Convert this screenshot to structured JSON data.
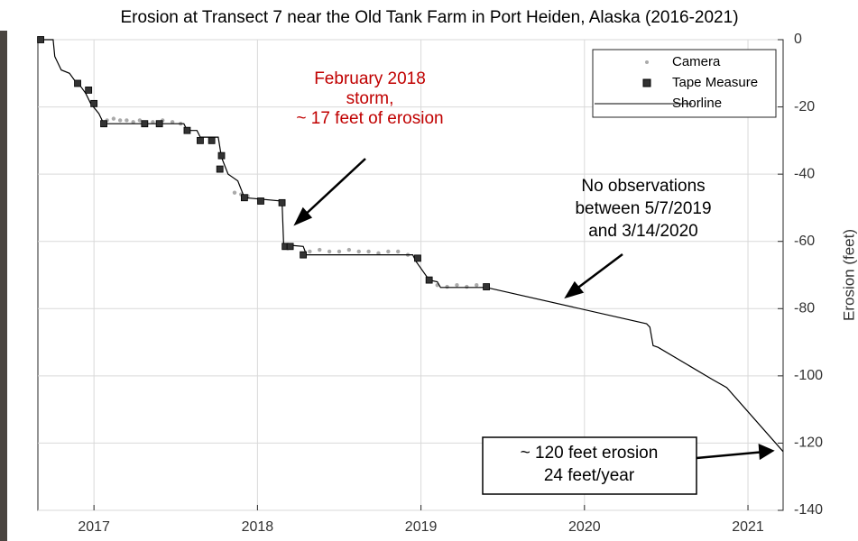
{
  "chart_data": {
    "type": "line",
    "title": "Erosion at Transect 7 near the Old Tank Farm in Port Heiden, Alaska (2016-2021)",
    "ylabel": "Erosion (feet)",
    "xlim": [
      2016.657,
      2021.215
    ],
    "xticks": [
      2017,
      2018,
      2019,
      2020,
      2021
    ],
    "ylim": [
      -140,
      0
    ],
    "yticks": [
      -140,
      -120,
      -100,
      -80,
      -60,
      -40,
      -20,
      0
    ],
    "grid": true,
    "legend": "upper right",
    "series": [
      {
        "name": "Camera",
        "color": "#aaaaaa",
        "x": [
          2017.08,
          2017.12,
          2017.16,
          2017.2,
          2017.24,
          2017.28,
          2017.36,
          2017.42,
          2017.48,
          2017.53,
          2017.86,
          2017.9,
          2017.94,
          2018.32,
          2018.38,
          2018.44,
          2018.5,
          2018.56,
          2018.62,
          2018.68,
          2018.74,
          2018.8,
          2018.86,
          2018.92,
          2019.1,
          2019.16,
          2019.22,
          2019.28,
          2019.34
        ],
        "values": [
          -24,
          -23.5,
          -24,
          -24,
          -24.5,
          -24,
          -24.5,
          -24,
          -24.5,
          -25,
          -45.5,
          -46,
          -46.5,
          -63,
          -62.5,
          -63,
          -63,
          -62.5,
          -63,
          -63,
          -63.5,
          -63,
          -63,
          -64,
          -73,
          -73.5,
          -73,
          -73.5,
          -73
        ]
      },
      {
        "name": "Tape Measure",
        "color": "#333333",
        "x": [
          2016.674,
          2016.9,
          2016.967,
          2017.0,
          2017.06,
          2017.31,
          2017.4,
          2017.57,
          2017.65,
          2017.72,
          2017.78,
          2017.77,
          2017.92,
          2018.02,
          2018.15,
          2018.17,
          2018.2,
          2018.28,
          2018.98,
          2019.05,
          2019.4
        ],
        "values": [
          0,
          -13,
          -15,
          -19,
          -25,
          -25,
          -25,
          -27,
          -30,
          -30,
          -34.5,
          -38.5,
          -47,
          -48,
          -48.5,
          -61.5,
          -61.5,
          -64,
          -65,
          -71.5,
          -73.5
        ]
      },
      {
        "name": "Shorline",
        "color": "#000000",
        "x": [
          2016.66,
          2016.75,
          2016.76,
          2016.8,
          2016.85,
          2016.88,
          2016.92,
          2016.95,
          2016.98,
          2017.03,
          2017.06,
          2017.55,
          2017.57,
          2017.63,
          2017.65,
          2017.76,
          2017.78,
          2017.82,
          2017.88,
          2017.92,
          2018.15,
          2018.16,
          2018.28,
          2018.3,
          2018.95,
          2018.97,
          2019.05,
          2019.1,
          2019.12,
          2019.4,
          2020.38,
          2020.4,
          2020.42,
          2020.45,
          2020.78,
          2020.87,
          2021.215
        ],
        "values": [
          0,
          0,
          -5,
          -9,
          -10,
          -12,
          -14,
          -16,
          -19,
          -22,
          -25,
          -25,
          -27,
          -27,
          -29,
          -29,
          -35,
          -40,
          -42,
          -47,
          -48,
          -61,
          -61.5,
          -64,
          -64,
          -66,
          -71.5,
          -72,
          -73.7,
          -73.7,
          -84.5,
          -85.5,
          -91,
          -91.5,
          -101,
          -103.5,
          -122.5
        ]
      }
    ],
    "annotations": [
      {
        "color": "#c00000",
        "lines": [
          "February 2018",
          "storm,",
          "~ 17 feet of erosion"
        ]
      },
      {
        "color": "#000000",
        "lines": [
          "No observations",
          "between 5/7/2019",
          "and 3/14/2020"
        ]
      },
      {
        "color": "#000000",
        "lines": [
          "~ 120 feet erosion",
          "24 feet/year"
        ]
      }
    ]
  }
}
